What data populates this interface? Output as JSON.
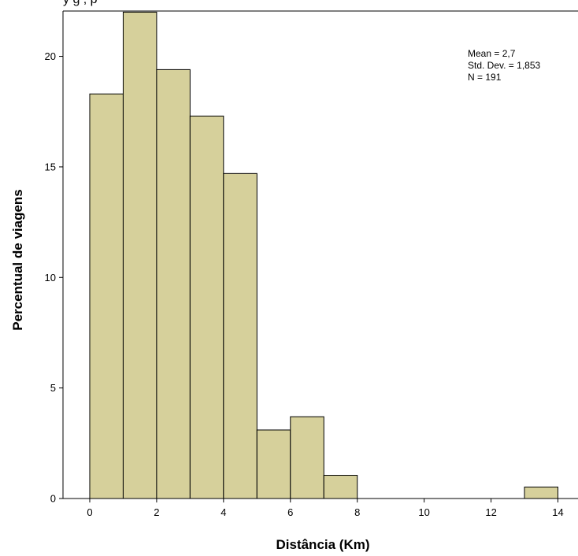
{
  "cut_title": "y                   g                                                            , p",
  "chart_data": {
    "type": "bar",
    "subtype": "histogram",
    "bins": [
      {
        "x0": 0,
        "x1": 1,
        "value": 18.3
      },
      {
        "x0": 1,
        "x1": 2,
        "value": 22.0
      },
      {
        "x0": 2,
        "x1": 3,
        "value": 19.4
      },
      {
        "x0": 3,
        "x1": 4,
        "value": 17.3
      },
      {
        "x0": 4,
        "x1": 5,
        "value": 14.7
      },
      {
        "x0": 5,
        "x1": 6,
        "value": 3.1
      },
      {
        "x0": 6,
        "x1": 7,
        "value": 3.7
      },
      {
        "x0": 7,
        "x1": 8,
        "value": 1.05
      },
      {
        "x0": 13,
        "x1": 14,
        "value": 0.52
      }
    ],
    "xlabel": "Distância (Km)",
    "ylabel": "Percentual de viagens",
    "xlim": [
      -0.8,
      14.6
    ],
    "ylim": [
      0,
      22.05
    ],
    "xticks": [
      "0",
      "2",
      "4",
      "6",
      "8",
      "10",
      "12",
      "14"
    ],
    "yticks": [
      "0",
      "5",
      "10",
      "15",
      "20"
    ],
    "stats": [
      "Mean = 2,7",
      "Std. Dev. = 1,853",
      "N = 191"
    ],
    "stats_position": "top-right",
    "grid": false,
    "colors": {
      "bar_fill": "#d6d09b",
      "bar_edge": "#000000",
      "background": "#ffffff",
      "axis": "#000000"
    }
  }
}
